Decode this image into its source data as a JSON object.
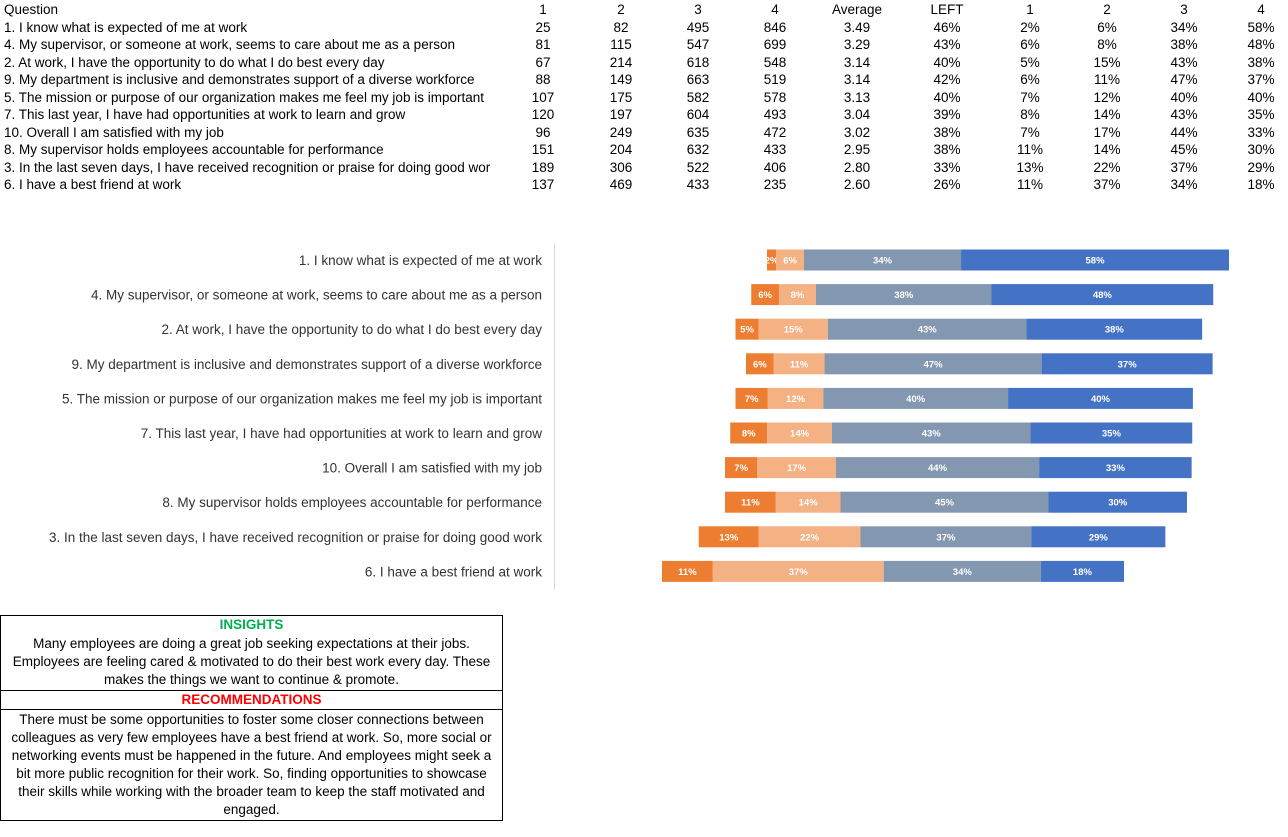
{
  "table": {
    "headers": [
      "Question",
      "1",
      "2",
      "3",
      "4",
      "Average",
      "LEFT",
      "1",
      "2",
      "3",
      "4"
    ],
    "rows": [
      [
        "1. I know what is expected of me at work",
        "25",
        "82",
        "495",
        "846",
        "3.49",
        "46%",
        "2%",
        "6%",
        "34%",
        "58%"
      ],
      [
        "4. My supervisor, or someone at work, seems to care about me as a person",
        "81",
        "115",
        "547",
        "699",
        "3.29",
        "43%",
        "6%",
        "8%",
        "38%",
        "48%"
      ],
      [
        "2. At work, I have the opportunity to do what I do best every day",
        "67",
        "214",
        "618",
        "548",
        "3.14",
        "40%",
        "5%",
        "15%",
        "43%",
        "38%"
      ],
      [
        "9. My department is inclusive and demonstrates support of a diverse workforce",
        "88",
        "149",
        "663",
        "519",
        "3.14",
        "42%",
        "6%",
        "11%",
        "47%",
        "37%"
      ],
      [
        "5. The mission or purpose of our organization makes me feel my job is important",
        "107",
        "175",
        "582",
        "578",
        "3.13",
        "40%",
        "7%",
        "12%",
        "40%",
        "40%"
      ],
      [
        "7. This last year, I have had opportunities at work to learn and grow",
        "120",
        "197",
        "604",
        "493",
        "3.04",
        "39%",
        "8%",
        "14%",
        "43%",
        "35%"
      ],
      [
        "10. Overall I am satisfied with my job",
        "96",
        "249",
        "635",
        "472",
        "3.02",
        "38%",
        "7%",
        "17%",
        "44%",
        "33%"
      ],
      [
        "8. My supervisor holds employees accountable for performance",
        "151",
        "204",
        "632",
        "433",
        "2.95",
        "38%",
        "11%",
        "14%",
        "45%",
        "30%"
      ],
      [
        "3. In the last seven days, I have received recognition or praise for doing good wor",
        "189",
        "306",
        "522",
        "406",
        "2.80",
        "33%",
        "13%",
        "22%",
        "37%",
        "29%"
      ],
      [
        "6. I have a best friend at work",
        "137",
        "469",
        "433",
        "235",
        "2.60",
        "26%",
        "11%",
        "37%",
        "34%",
        "18%"
      ]
    ]
  },
  "chart_data": {
    "type": "bar",
    "orientation": "horizontal",
    "stacked": true,
    "diverging": true,
    "categories": [
      "1. I know what is expected of me at work",
      "4. My supervisor, or someone at work, seems to care about me as a person",
      "2. At work, I have the opportunity to do what I do best every day",
      "9. My department is inclusive and demonstrates support of a diverse workforce",
      "5. The mission or purpose of our organization makes me feel my job is important",
      "7. This last year, I have had opportunities at work to learn and grow",
      "10. Overall I am satisfied with my job",
      "8. My supervisor holds employees accountable for performance",
      "3. In the last seven days, I have received recognition or praise for doing good work",
      "6. I have a best friend at work"
    ],
    "left_offset": [
      46,
      43,
      40,
      42,
      40,
      39,
      38,
      38,
      33,
      26
    ],
    "series": [
      {
        "values": [
          2,
          6,
          5,
          6,
          7,
          8,
          7,
          11,
          13,
          11
        ],
        "color": "#ed7d31"
      },
      {
        "values": [
          6,
          8,
          15,
          11,
          12,
          14,
          17,
          14,
          22,
          37
        ],
        "color": "#f4b183"
      },
      {
        "values": [
          34,
          38,
          43,
          47,
          40,
          43,
          44,
          45,
          37,
          34
        ],
        "color": "#8497b0"
      },
      {
        "values": [
          58,
          48,
          38,
          37,
          40,
          35,
          33,
          30,
          29,
          18
        ],
        "color": "#4472c4"
      }
    ],
    "value_suffix": "%",
    "xlim": [
      0,
      100
    ],
    "grid": false,
    "legend": "none"
  },
  "insights": {
    "title": "INSIGHTS",
    "lines": [
      "Many employees are doing a great job seeking expectations at their jobs.",
      "Employees are feeling cared & motivated to do their best work every day. These",
      "makes the things we want to continue & promote."
    ]
  },
  "recommendations": {
    "title": "RECOMMENDATIONS",
    "lines": [
      "There must be some opportunities to foster some closer connections between",
      "colleagues as very few employees have a best friend at work. So, more social or",
      "networking events must be happened in the future. And employees might seek a",
      "bit more public recognition for their work. So, finding opportunities to showcase",
      "their skills while working with the broader team to keep the staff motivated and",
      "engaged."
    ]
  },
  "colors": {
    "insights_title": "#00b050",
    "recommendations_title": "#ff0000"
  }
}
